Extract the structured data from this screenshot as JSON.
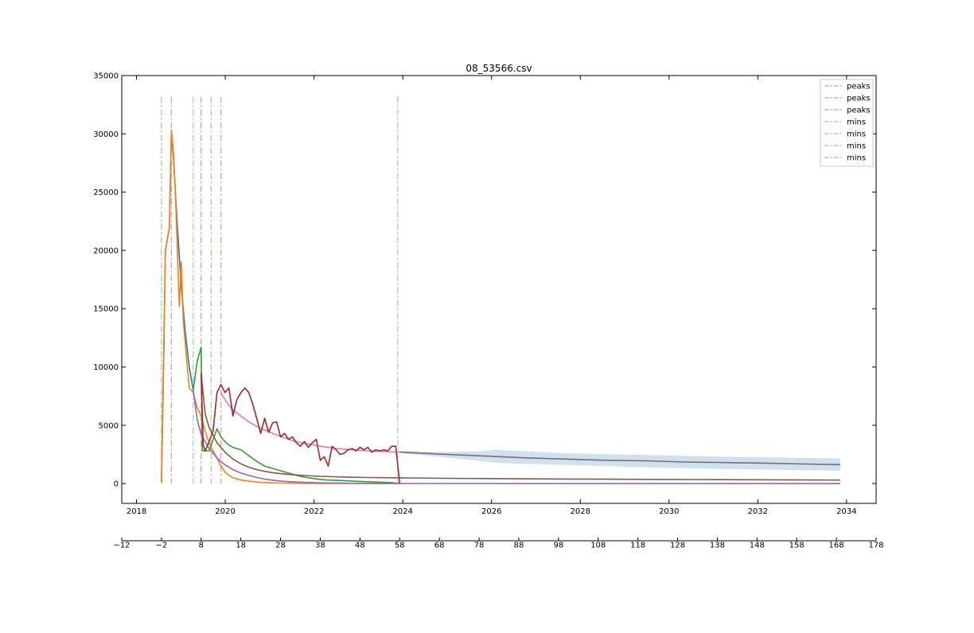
{
  "chart_data": {
    "type": "line",
    "title": "08_53566.csv",
    "xlabel": "",
    "ylabel": "",
    "ylim": [
      -1700,
      35000
    ],
    "y_ticks": [
      0,
      5000,
      10000,
      15000,
      20000,
      25000,
      30000,
      35000
    ],
    "y_tick_labels": [
      "0",
      "5000",
      "10000",
      "15000",
      "20000",
      "25000",
      "30000",
      "35000"
    ],
    "x_date_range": [
      "2017-09",
      "2034-09"
    ],
    "x_date_ticks": [
      "2018",
      "2020",
      "2022",
      "2024",
      "2026",
      "2028",
      "2030",
      "2032",
      "2034"
    ],
    "x_index_range": [
      -12,
      178
    ],
    "x_index_ticks": [
      -12,
      -2,
      8,
      18,
      28,
      38,
      48,
      58,
      68,
      78,
      88,
      98,
      108,
      118,
      128,
      138,
      148,
      158,
      168,
      178
    ],
    "x_index_tick_labels": [
      "−12",
      "−2",
      "8",
      "18",
      "28",
      "38",
      "48",
      "58",
      "68",
      "78",
      "88",
      "98",
      "108",
      "118",
      "128",
      "138",
      "148",
      "158",
      "168",
      "178"
    ],
    "grid": false,
    "legend_position": "top-right",
    "legend": [
      {
        "label": "peaks",
        "color": "#d62728",
        "style": "dashdot"
      },
      {
        "label": "peaks",
        "color": "#d62728",
        "style": "dashdot"
      },
      {
        "label": "peaks",
        "color": "#d62728",
        "style": "dashdot"
      },
      {
        "label": "mins",
        "color": "#2ca02c",
        "style": "dashdot"
      },
      {
        "label": "mins",
        "color": "#2ca02c",
        "style": "dashdot"
      },
      {
        "label": "mins",
        "color": "#2ca02c",
        "style": "dashdot"
      },
      {
        "label": "mins",
        "color": "#2ca02c",
        "style": "dashdot"
      }
    ],
    "peak_lines": [
      0.5,
      8.0,
      13.0
    ],
    "min_lines": [
      -2.0,
      6.0,
      10.5,
      57.5
    ],
    "vline_ymax": 33200,
    "series": [
      {
        "color": "#1f77b4",
        "x": [
          -2,
          -1,
          0,
          0.5,
          1,
          2,
          3,
          4,
          5,
          6
        ],
        "y": [
          100,
          20000,
          22000,
          30300,
          28000,
          22000,
          17000,
          13000,
          10000,
          8000
        ]
      },
      {
        "color": "#ff7f0e",
        "x": [
          -2,
          -1.5,
          -1,
          0,
          0.5,
          1,
          1.5,
          2,
          2.5,
          3,
          3.5,
          4,
          5,
          6,
          7,
          8,
          9,
          10,
          11,
          12,
          13,
          14,
          15,
          16,
          17,
          18,
          20,
          22,
          24,
          26,
          28,
          30,
          34,
          38,
          44,
          50,
          58
        ],
        "y": [
          100,
          9000,
          20000,
          22000,
          30300,
          28500,
          25000,
          20000,
          15200,
          19000,
          14000,
          12000,
          8200,
          7800,
          6500,
          5800,
          4500,
          3500,
          2800,
          2200,
          1500,
          1000,
          700,
          500,
          400,
          300,
          200,
          130,
          90,
          60,
          40,
          30,
          20,
          10,
          5,
          2,
          0
        ]
      },
      {
        "color": "#2ca02c",
        "x": [
          6,
          7,
          8,
          8.3,
          9,
          10,
          11,
          12,
          13,
          14,
          15,
          16,
          18,
          20,
          22,
          24,
          26,
          28,
          30,
          32,
          34,
          36,
          38,
          40,
          44,
          48,
          52,
          56,
          58
        ],
        "y": [
          8000,
          10500,
          11700,
          2800,
          2800,
          2800,
          3800,
          4700,
          4000,
          3600,
          3300,
          3100,
          2900,
          2400,
          1900,
          1500,
          1300,
          1100,
          900,
          700,
          550,
          450,
          350,
          300,
          250,
          180,
          130,
          80,
          0
        ]
      },
      {
        "color": "#9467bd",
        "x": [
          6,
          7,
          8,
          10,
          12,
          14,
          16,
          18,
          20,
          22,
          24,
          26,
          28,
          30,
          34,
          38,
          44,
          50,
          60,
          80,
          100,
          120,
          140,
          169
        ],
        "y": [
          8000,
          5500,
          4200,
          3000,
          2200,
          1600,
          1200,
          900,
          700,
          520,
          390,
          290,
          220,
          160,
          100,
          60,
          30,
          15,
          5,
          2,
          1,
          0,
          0,
          0
        ]
      },
      {
        "color": "#8c564b",
        "x": [
          8,
          9,
          10,
          12,
          14,
          16,
          18,
          20,
          22,
          24,
          26,
          28,
          30,
          34,
          38,
          44,
          50,
          60,
          70,
          80,
          100,
          120,
          140,
          169
        ],
        "y": [
          9500,
          6000,
          4800,
          3500,
          2700,
          2100,
          1700,
          1400,
          1200,
          1050,
          930,
          850,
          780,
          690,
          620,
          560,
          520,
          480,
          450,
          430,
          390,
          360,
          330,
          300
        ]
      },
      {
        "color": "#e377c2",
        "x": [
          13,
          14,
          15,
          16,
          18,
          20,
          22,
          24,
          26,
          28,
          30,
          32,
          34,
          38,
          42,
          46,
          50,
          54,
          58
        ],
        "y": [
          7800,
          7200,
          6700,
          6300,
          5800,
          5300,
          4900,
          4600,
          4300,
          4050,
          3800,
          3600,
          3450,
          3200,
          3000,
          2900,
          2800,
          2750,
          2700
        ]
      },
      {
        "color": "#a0282b",
        "x": [
          8,
          8.5,
          9,
          10,
          11,
          12,
          13,
          14,
          15,
          16,
          17,
          18,
          19,
          20,
          21,
          22,
          23,
          24,
          25,
          26,
          27,
          28,
          29,
          30,
          31,
          32,
          33,
          34,
          35,
          36,
          37,
          38,
          39,
          40,
          41,
          42,
          43,
          44,
          45,
          46,
          47,
          48,
          49,
          50,
          51,
          52,
          53,
          54,
          55,
          56,
          57,
          58
        ],
        "y": [
          9500,
          3300,
          2800,
          3600,
          4500,
          7800,
          8500,
          7800,
          8200,
          5800,
          7200,
          7800,
          8200,
          7800,
          6800,
          5600,
          4300,
          5600,
          4400,
          5200,
          5300,
          4000,
          4300,
          3800,
          4000,
          3500,
          3200,
          3600,
          3100,
          3500,
          3800,
          2000,
          2300,
          1500,
          3200,
          2900,
          2500,
          2600,
          2900,
          3000,
          2800,
          3100,
          2900,
          3100,
          2700,
          2900,
          2800,
          2900,
          2800,
          3200,
          3200,
          0
        ]
      },
      {
        "color": "#7f6b73",
        "x": [
          58,
          70,
          80,
          90,
          100,
          110,
          120,
          130,
          140,
          150,
          160,
          169
        ],
        "y": [
          2700,
          2500,
          2350,
          2200,
          2100,
          2000,
          1950,
          1850,
          1800,
          1750,
          1680,
          1620
        ]
      }
    ],
    "forecast_band": {
      "color": "#a6c8e0",
      "x": [
        58,
        68,
        78,
        82,
        88,
        100,
        120,
        140,
        160,
        169
      ],
      "upper": [
        2800,
        2700,
        2750,
        2900,
        2800,
        2600,
        2450,
        2300,
        2200,
        2150
      ],
      "lower": [
        2600,
        2300,
        1950,
        1800,
        1700,
        1600,
        1400,
        1250,
        1150,
        1100
      ]
    }
  }
}
